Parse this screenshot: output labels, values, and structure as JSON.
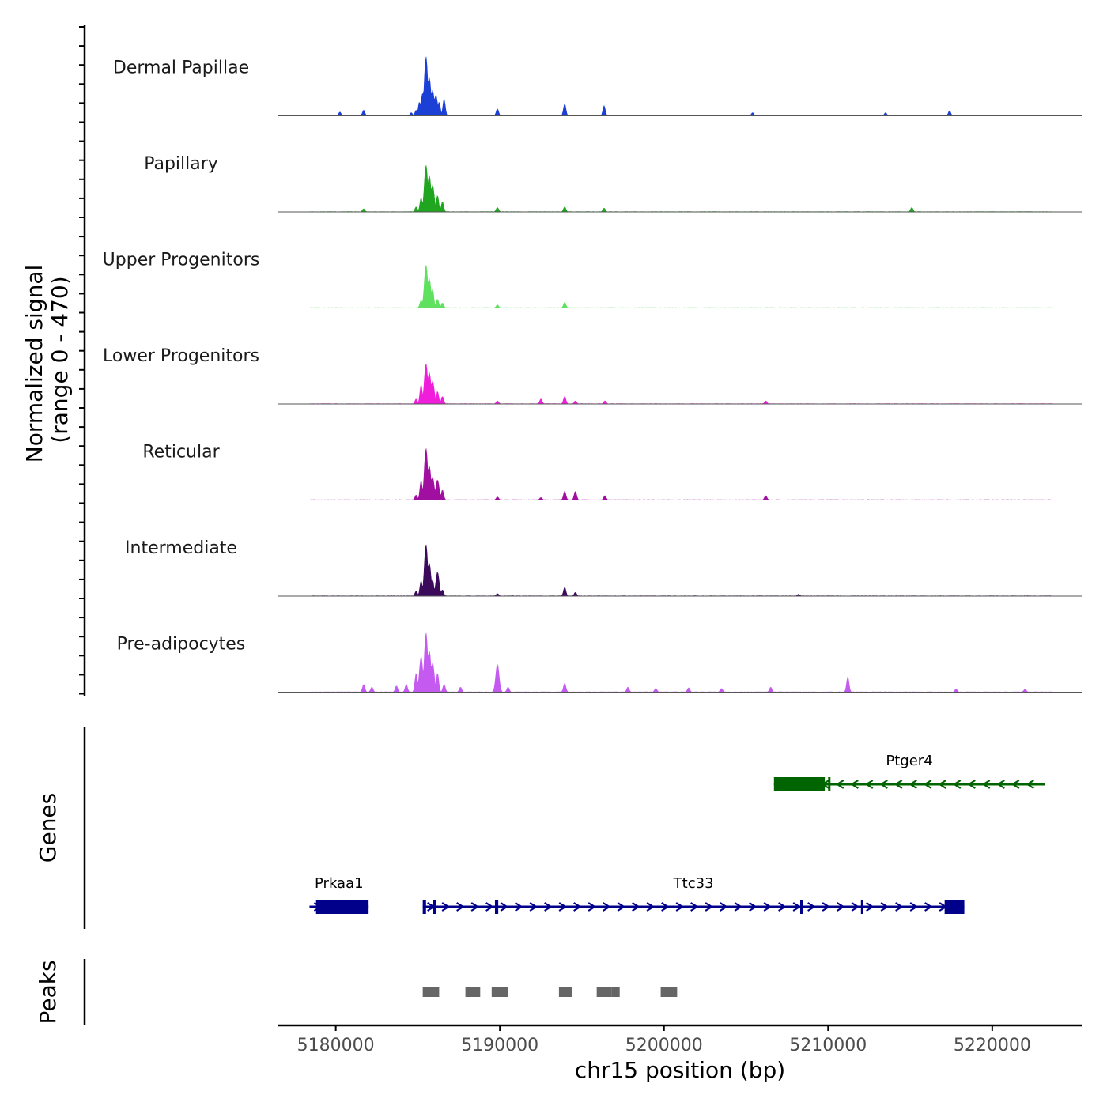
{
  "chart_data": {
    "type": "coverage",
    "chromosome": "chr15",
    "xlim": [
      5176500,
      5225500
    ],
    "xlabel": "chr15 position (bp)",
    "x_ticks": [
      5180000,
      5190000,
      5200000,
      5210000,
      5220000
    ],
    "x_tick_labels": [
      "5180000",
      "5190000",
      "5200000",
      "5210000",
      "5220000"
    ],
    "ylabel_line1": "Normalized signal",
    "ylabel_line2": "(range 0 - 470)",
    "ylim": [
      0,
      470
    ],
    "tracks": [
      {
        "name": "Dermal Papillae",
        "color": "#1c3fd6",
        "peaks": [
          [
            5180250,
            30
          ],
          [
            5181700,
            45
          ],
          [
            5184600,
            25
          ],
          [
            5184900,
            45
          ],
          [
            5185100,
            110
          ],
          [
            5185300,
            180
          ],
          [
            5185500,
            470
          ],
          [
            5185700,
            300
          ],
          [
            5185900,
            200
          ],
          [
            5186100,
            160
          ],
          [
            5186300,
            110
          ],
          [
            5186600,
            130
          ],
          [
            5189850,
            55
          ],
          [
            5193950,
            95
          ],
          [
            5196350,
            80
          ],
          [
            5205400,
            25
          ],
          [
            5213500,
            25
          ],
          [
            5217400,
            40
          ]
        ]
      },
      {
        "name": "Papillary",
        "color": "#1fa51f",
        "peaks": [
          [
            5181700,
            25
          ],
          [
            5184900,
            40
          ],
          [
            5185200,
            110
          ],
          [
            5185500,
            370
          ],
          [
            5185700,
            290
          ],
          [
            5185900,
            210
          ],
          [
            5186200,
            130
          ],
          [
            5186500,
            80
          ],
          [
            5189850,
            35
          ],
          [
            5193950,
            40
          ],
          [
            5196350,
            30
          ],
          [
            5215100,
            35
          ]
        ]
      },
      {
        "name": "Upper Progenitors",
        "color": "#5fe05f",
        "peaks": [
          [
            5185200,
            60
          ],
          [
            5185500,
            340
          ],
          [
            5185700,
            230
          ],
          [
            5185900,
            150
          ],
          [
            5186200,
            70
          ],
          [
            5186500,
            40
          ],
          [
            5189850,
            25
          ],
          [
            5193950,
            45
          ]
        ]
      },
      {
        "name": "Lower Progenitors",
        "color": "#f01ddb",
        "peaks": [
          [
            5184900,
            40
          ],
          [
            5185200,
            150
          ],
          [
            5185500,
            320
          ],
          [
            5185700,
            250
          ],
          [
            5185900,
            180
          ],
          [
            5186200,
            100
          ],
          [
            5186500,
            60
          ],
          [
            5189850,
            25
          ],
          [
            5192500,
            40
          ],
          [
            5193950,
            60
          ],
          [
            5194600,
            25
          ],
          [
            5196400,
            25
          ],
          [
            5206200,
            25
          ]
        ]
      },
      {
        "name": "Reticular",
        "color": "#a10fa0",
        "peaks": [
          [
            5184900,
            40
          ],
          [
            5185200,
            150
          ],
          [
            5185500,
            410
          ],
          [
            5185700,
            270
          ],
          [
            5185900,
            180
          ],
          [
            5186200,
            160
          ],
          [
            5186500,
            80
          ],
          [
            5189850,
            25
          ],
          [
            5192500,
            20
          ],
          [
            5193950,
            70
          ],
          [
            5194600,
            70
          ],
          [
            5196400,
            35
          ],
          [
            5206200,
            35
          ]
        ]
      },
      {
        "name": "Intermediate",
        "color": "#3c0a5a",
        "peaks": [
          [
            5184900,
            40
          ],
          [
            5185200,
            120
          ],
          [
            5185500,
            410
          ],
          [
            5185700,
            260
          ],
          [
            5185900,
            130
          ],
          [
            5186200,
            190
          ],
          [
            5186500,
            50
          ],
          [
            5189850,
            20
          ],
          [
            5193950,
            70
          ],
          [
            5194600,
            30
          ],
          [
            5208200,
            15
          ]
        ]
      },
      {
        "name": "Pre-adipocytes",
        "color": "#c45af0",
        "peaks": [
          [
            5181700,
            60
          ],
          [
            5182200,
            40
          ],
          [
            5183700,
            50
          ],
          [
            5184300,
            60
          ],
          [
            5184900,
            150
          ],
          [
            5185200,
            280
          ],
          [
            5185500,
            470
          ],
          [
            5185700,
            330
          ],
          [
            5185900,
            230
          ],
          [
            5186200,
            150
          ],
          [
            5186600,
            60
          ],
          [
            5187600,
            40
          ],
          [
            5189850,
            220
          ],
          [
            5190500,
            40
          ],
          [
            5193950,
            70
          ],
          [
            5197800,
            40
          ],
          [
            5199500,
            30
          ],
          [
            5201500,
            35
          ],
          [
            5203500,
            30
          ],
          [
            5206500,
            40
          ],
          [
            5211200,
            120
          ],
          [
            5217800,
            25
          ],
          [
            5222000,
            25
          ]
        ]
      }
    ],
    "genes_label": "Genes",
    "genes": [
      {
        "name": "Ptger4",
        "color": "#006400",
        "strand": "-",
        "start": 5206700,
        "end": 5223200,
        "exons": [
          [
            5206700,
            5209800
          ],
          [
            5210000,
            5210100
          ]
        ]
      },
      {
        "name": "Prkaa1",
        "color": "#00008b",
        "strand": "+",
        "start": 5178400,
        "end": 5182000,
        "exons": [
          [
            5178800,
            5182000
          ]
        ]
      },
      {
        "name": "Ttc33",
        "color": "#00008b",
        "strand": "+",
        "start": 5185300,
        "end": 5218300,
        "exons": [
          [
            5185300,
            5185500
          ],
          [
            5185900,
            5186100
          ],
          [
            5189700,
            5189900
          ],
          [
            5208300,
            5208400
          ],
          [
            5212000,
            5212100
          ],
          [
            5217100,
            5218300
          ]
        ]
      }
    ],
    "peaks_label": "Peaks",
    "peak_regions": [
      [
        5185300,
        5186300
      ],
      [
        5187900,
        5188800
      ],
      [
        5189500,
        5190500
      ],
      [
        5193600,
        5194400
      ],
      [
        5195900,
        5196800
      ],
      [
        5196800,
        5197300
      ],
      [
        5199800,
        5200800
      ]
    ]
  }
}
